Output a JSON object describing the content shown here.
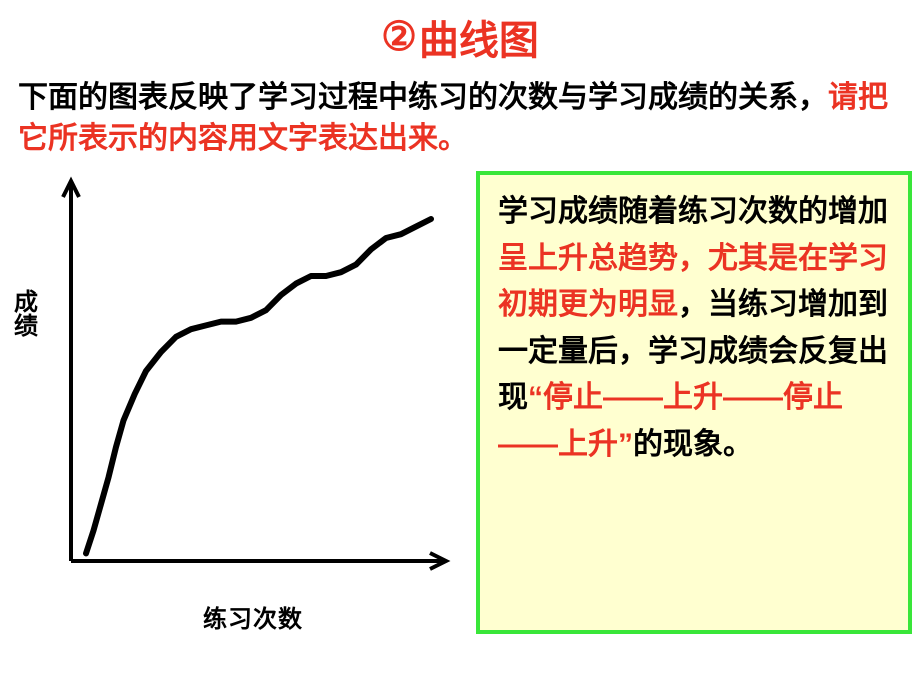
{
  "title": {
    "number": "②",
    "text": "曲线图",
    "color": "#eb3323",
    "fontsize": 40
  },
  "intro": {
    "seg1_black": "下面的图表反映了学习过程中练习的次数与学习成绩的关系，",
    "seg2_red": "请把它所表示的内容用文字表达出来。",
    "fontsize": 30
  },
  "chart": {
    "type": "line",
    "ylabel": "成绩",
    "xlabel": "练习次数",
    "stroke_color": "#000000",
    "stroke_width": 6,
    "axis_color": "#000000",
    "axis_width": 4,
    "background": "#ffffff",
    "xlim": [
      0,
      100
    ],
    "ylim": [
      0,
      100
    ],
    "points": [
      [
        4,
        2
      ],
      [
        6,
        8
      ],
      [
        8,
        15
      ],
      [
        10,
        22
      ],
      [
        12,
        30
      ],
      [
        14,
        37
      ],
      [
        17,
        44
      ],
      [
        20,
        50
      ],
      [
        24,
        55
      ],
      [
        28,
        59
      ],
      [
        32,
        61
      ],
      [
        36,
        62
      ],
      [
        40,
        63
      ],
      [
        44,
        63
      ],
      [
        48,
        64
      ],
      [
        52,
        66
      ],
      [
        56,
        70
      ],
      [
        60,
        73
      ],
      [
        64,
        75
      ],
      [
        68,
        75
      ],
      [
        72,
        76
      ],
      [
        76,
        78
      ],
      [
        80,
        82
      ],
      [
        84,
        85
      ],
      [
        88,
        86
      ],
      [
        92,
        88
      ],
      [
        96,
        90
      ]
    ],
    "label_fontsize": 24,
    "label_weight": "bold"
  },
  "explanation": {
    "background": "#ffffd0",
    "border_color": "#39e639",
    "border_width": 4,
    "fontsize": 30,
    "segments": {
      "s1_black": "学习成绩随着练习次数的增加",
      "s2_red": "呈上升总趋势，",
      "s3_red": "尤其是在学习初期更为明显",
      "s4_black": "，当练习增加到一定量后，学习成绩会反复出现",
      "s5_red": "“停止——上升——停止——上升”",
      "s6_black": "的现象。"
    }
  }
}
